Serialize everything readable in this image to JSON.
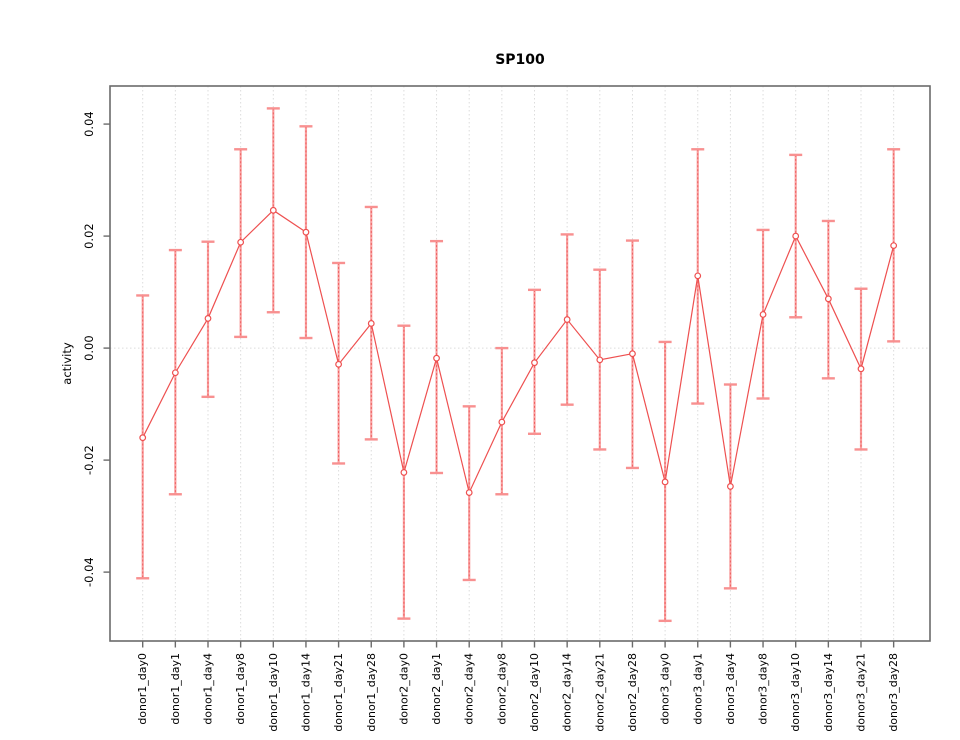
{
  "chart_data": {
    "type": "line",
    "title": "SP100",
    "xlabel": "",
    "ylabel": "activity",
    "marker": "open-circle",
    "error_bars": true,
    "grid": {
      "vertical_dotted": true,
      "zero_line_dotted": true
    },
    "legend_position": "none",
    "ylim": [
      -0.0523,
      0.0468
    ],
    "yticks": [
      -0.04,
      -0.02,
      0,
      0.02,
      0.04
    ],
    "ytick_labels": [
      "-0.04",
      "-0.02",
      "0.00",
      "0.02",
      "0.04"
    ],
    "categories": [
      "donor1_day0",
      "donor1_day1",
      "donor1_day4",
      "donor1_day8",
      "donor1_day10",
      "donor1_day14",
      "donor1_day21",
      "donor1_day28",
      "donor2_day0",
      "donor2_day1",
      "donor2_day4",
      "donor2_day8",
      "donor2_day10",
      "donor2_day14",
      "donor2_day21",
      "donor2_day28",
      "donor3_day0",
      "donor3_day1",
      "donor3_day4",
      "donor3_day8",
      "donor3_day10",
      "donor3_day14",
      "donor3_day21",
      "donor3_day28"
    ],
    "series": [
      {
        "name": "SP100",
        "values": [
          -0.016,
          -0.0044,
          0.0053,
          0.0189,
          0.0246,
          0.0207,
          -0.0029,
          0.0044,
          -0.0222,
          -0.0018,
          -0.0258,
          -0.0132,
          -0.0026,
          0.0051,
          -0.0021,
          -0.001,
          -0.0239,
          0.0129,
          -0.0247,
          0.006,
          0.02,
          0.0088,
          -0.0037,
          0.0183
        ],
        "upper": [
          0.0094,
          0.0175,
          0.019,
          0.0355,
          0.0428,
          0.0396,
          0.0152,
          0.0252,
          0.004,
          0.0191,
          -0.0104,
          0.0,
          0.0104,
          0.0203,
          0.014,
          0.0192,
          0.0011,
          0.0355,
          -0.0065,
          0.0211,
          0.0345,
          0.0227,
          0.0106,
          0.0355
        ],
        "lower": [
          -0.0411,
          -0.0261,
          -0.0087,
          0.002,
          0.0064,
          0.0018,
          -0.0206,
          -0.0163,
          -0.0483,
          -0.0223,
          -0.0414,
          -0.0261,
          -0.0153,
          -0.0101,
          -0.0181,
          -0.0214,
          -0.0487,
          -0.0099,
          -0.0429,
          -0.009,
          0.0055,
          -0.0054,
          -0.0181,
          0.0012
        ]
      }
    ],
    "colors": {
      "line": "#ee5050",
      "point_stroke": "#ee5050",
      "point_fill": "#ffffff",
      "error_bar": "#f9a0a0",
      "error_cap": "#f89090",
      "error_dotted_core": "#ee6060",
      "grid": "#dcdcdc",
      "axis_frame": "#6b6b6b",
      "text": "#000000"
    }
  }
}
